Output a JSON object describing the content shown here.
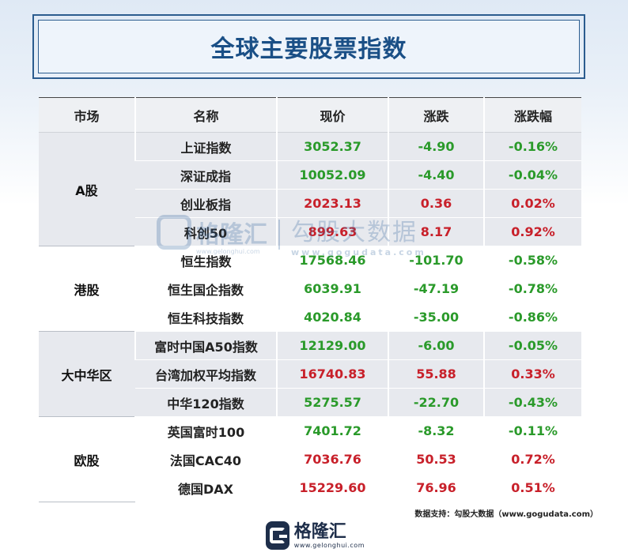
{
  "title": "全球主要股票指数",
  "columns": [
    "市场",
    "名称",
    "现价",
    "涨跌",
    "涨跌幅"
  ],
  "groups": [
    {
      "market": "A股",
      "rows": [
        {
          "name": "上证指数",
          "price": "3052.37",
          "change": "-4.90",
          "pct": "-0.16%"
        },
        {
          "name": "深证成指",
          "price": "10052.09",
          "change": "-4.40",
          "pct": "-0.04%"
        },
        {
          "name": "创业板指",
          "price": "2023.13",
          "change": "0.36",
          "pct": "0.02%"
        },
        {
          "name": "科创50",
          "price": "899.63",
          "change": "8.17",
          "pct": "0.92%"
        }
      ]
    },
    {
      "market": "港股",
      "rows": [
        {
          "name": "恒生指数",
          "price": "17568.46",
          "change": "-101.70",
          "pct": "-0.58%"
        },
        {
          "name": "恒生国企指数",
          "price": "6039.91",
          "change": "-47.19",
          "pct": "-0.78%"
        },
        {
          "name": "恒生科技指数",
          "price": "4020.84",
          "change": "-35.00",
          "pct": "-0.86%"
        }
      ]
    },
    {
      "market": "大中华区",
      "rows": [
        {
          "name": "富时中国A50指数",
          "price": "12129.00",
          "change": "-6.00",
          "pct": "-0.05%"
        },
        {
          "name": "台湾加权平均指数",
          "price": "16740.83",
          "change": "55.88",
          "pct": "0.33%"
        },
        {
          "name": "中华120指数",
          "price": "5275.57",
          "change": "-22.70",
          "pct": "-0.43%"
        }
      ]
    },
    {
      "market": "欧股",
      "rows": [
        {
          "name": "英国富时100",
          "price": "7401.72",
          "change": "-8.32",
          "pct": "-0.11%"
        },
        {
          "name": "法国CAC40",
          "price": "7036.76",
          "change": "50.53",
          "pct": "0.72%"
        },
        {
          "name": "德国DAX",
          "price": "15229.60",
          "change": "76.96",
          "pct": "0.51%"
        }
      ]
    }
  ],
  "watermark": {
    "logo_name": "格隆汇",
    "logo_url": "www.gelonghui.com",
    "brand_name": "勾股大数据",
    "brand_url": "www.gogudata.com"
  },
  "source": "数据支持：勾股大数据（www.gogudata.com）",
  "footer": {
    "logo_name": "格隆汇",
    "logo_url": "www.gelonghui.com",
    "logo_icon": "gelonghui-logo-icon"
  },
  "colors": {
    "title": "#1a4f86",
    "up": "#c8202a",
    "down": "#2a9a2a",
    "group_shade": "#e7e9ee"
  }
}
